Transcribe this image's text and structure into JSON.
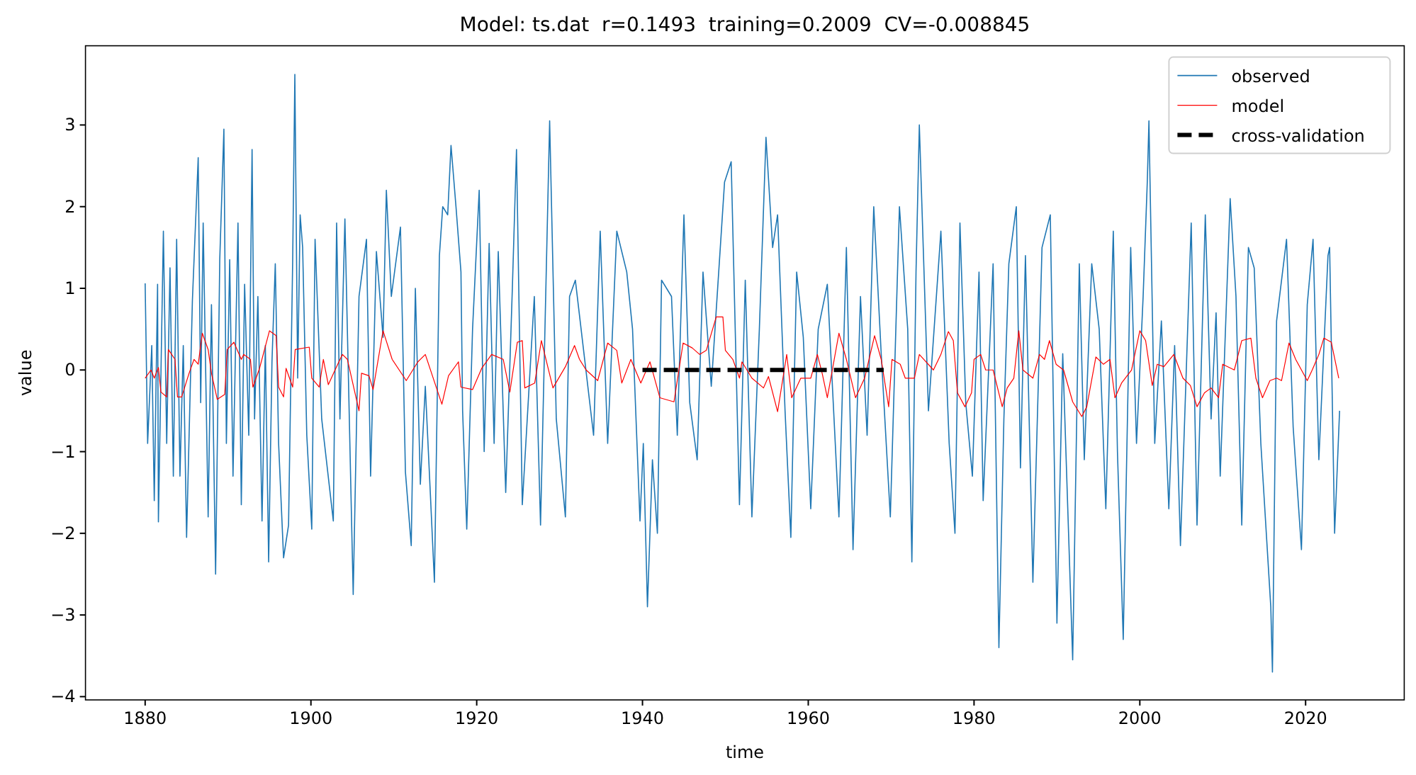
{
  "chart_data": {
    "type": "line",
    "title": "Model: ts.dat  r=0.1493  training=0.2009  CV=-0.008845",
    "xlabel": "time",
    "ylabel": "value",
    "xlim": [
      1872.8,
      2031.9
    ],
    "ylim": [
      -4.04,
      3.97
    ],
    "xticks": [
      1880,
      1900,
      1920,
      1940,
      1960,
      1980,
      2000,
      2020
    ],
    "yticks": [
      {
        "value": -4,
        "label": "−4"
      },
      {
        "value": -3,
        "label": "−3"
      },
      {
        "value": -2,
        "label": "−2"
      },
      {
        "value": -1,
        "label": "−1"
      },
      0,
      1,
      2,
      3
    ],
    "legend": "top right",
    "line_style": "solid",
    "marker": "none",
    "series": [
      {
        "name": "observed",
        "color": "#1f77b4",
        "x": [
          1880.0,
          1880.3,
          1880.8,
          1881.1,
          1881.5,
          1881.6,
          1882.2,
          1882.6,
          1883.0,
          1883.4,
          1883.8,
          1884.2,
          1884.6,
          1885.0,
          1885.7,
          1886.4,
          1886.7,
          1887.0,
          1887.6,
          1888.0,
          1888.5,
          1889.0,
          1889.5,
          1889.8,
          1890.2,
          1890.6,
          1891.2,
          1891.6,
          1892.0,
          1892.5,
          1892.9,
          1893.2,
          1893.6,
          1894.1,
          1894.5,
          1894.9,
          1895.3,
          1895.7,
          1896.1,
          1896.7,
          1897.3,
          1897.8,
          1898.06,
          1898.4,
          1898.7,
          1899.0,
          1899.5,
          1900.1,
          1900.5,
          1901.3,
          1902.7,
          1903.1,
          1903.5,
          1904.1,
          1905.1,
          1905.8,
          1906.7,
          1907.2,
          1907.9,
          1908.7,
          1909.1,
          1909.7,
          1910.8,
          1911.4,
          1912.1,
          1912.6,
          1913.2,
          1913.8,
          1914.4,
          1914.9,
          1915.5,
          1915.9,
          1916.5,
          1916.9,
          1917.5,
          1918.1,
          1918.3,
          1918.8,
          1919.5,
          1920.3,
          1920.9,
          1921.5,
          1922.1,
          1922.6,
          1923.5,
          1924.3,
          1924.8,
          1925.5,
          1926.95,
          1927.7,
          1928.8,
          1929.6,
          1930.7,
          1931.2,
          1931.9,
          1934.1,
          1934.9,
          1935.8,
          1936.9,
          1938.1,
          1938.8,
          1939.7,
          1940.1,
          1940.6,
          1941.2,
          1941.8,
          1942.3,
          1943.5,
          1944.2,
          1945.0,
          1945.7,
          1946.6,
          1947.3,
          1948.3,
          1949.9,
          1950.7,
          1951.7,
          1952.4,
          1953.2,
          1954.1,
          1954.9,
          1955.7,
          1956.3,
          1957.2,
          1957.9,
          1958.6,
          1959.4,
          1960.3,
          1961.2,
          1962.3,
          1963.7,
          1964.6,
          1965.4,
          1966.3,
          1967.1,
          1967.9,
          1968.8,
          1969.9,
          1971.0,
          1972.0,
          1972.5,
          1973.0,
          1973.4,
          1974.5,
          1976.0,
          1977.0,
          1977.7,
          1978.3,
          1979.0,
          1979.8,
          1980.6,
          1981.1,
          1982.3,
          1983.0,
          1983.6,
          1984.2,
          1985.1,
          1985.6,
          1986.2,
          1987.1,
          1988.2,
          1989.2,
          1990.0,
          1990.7,
          1991.9,
          1992.7,
          1993.3,
          1994.2,
          1995.1,
          1995.9,
          1996.8,
          1997.3,
          1998.0,
          1998.9,
          1999.6,
          2000.4,
          2000.9,
          2001.1,
          2001.8,
          2002.6,
          2003.5,
          2004.2,
          2004.9,
          2006.2,
          2006.9,
          2007.9,
          2008.6,
          2009.2,
          2009.7,
          2010.9,
          2011.6,
          2012.3,
          2013.1,
          2013.8,
          2014.6,
          2015.8,
          2016.0,
          2016.5,
          2017.7,
          2018.5,
          2019.5,
          2020.2,
          2020.9,
          2021.6,
          2022.7,
          2022.9,
          2023.5,
          2024.1
        ],
        "values": [
          1.06,
          -0.9,
          0.3,
          -1.6,
          1.05,
          -1.86,
          1.7,
          -0.9,
          1.25,
          -1.3,
          1.6,
          -1.3,
          0.3,
          -2.05,
          0.85,
          2.6,
          -0.4,
          1.8,
          -1.8,
          0.8,
          -2.5,
          1.35,
          2.95,
          -0.9,
          1.35,
          -1.3,
          1.8,
          -1.65,
          1.05,
          -0.8,
          2.7,
          -0.6,
          0.9,
          -1.85,
          0.3,
          -2.35,
          0.1,
          1.3,
          -0.9,
          -2.3,
          -1.9,
          1.35,
          3.62,
          -0.1,
          1.9,
          1.5,
          -0.8,
          -1.95,
          1.6,
          -0.6,
          -1.85,
          1.8,
          -0.6,
          1.85,
          -2.75,
          0.9,
          1.6,
          -1.3,
          1.45,
          0.4,
          2.2,
          0.9,
          1.75,
          -1.25,
          -2.15,
          1.0,
          -1.4,
          -0.2,
          -1.5,
          -2.6,
          1.4,
          2.0,
          1.9,
          2.75,
          2.0,
          1.2,
          -0.5,
          -1.95,
          0.5,
          2.2,
          -1.0,
          1.55,
          -0.9,
          1.45,
          -1.5,
          1.0,
          2.7,
          -1.65,
          0.9,
          -1.9,
          3.05,
          -0.6,
          -1.8,
          0.9,
          1.1,
          -0.8,
          1.7,
          -0.9,
          1.7,
          1.2,
          0.5,
          -1.85,
          -0.9,
          -2.9,
          -1.1,
          -2.0,
          1.1,
          0.9,
          -0.8,
          1.9,
          -0.4,
          -1.1,
          1.2,
          -0.2,
          2.3,
          2.55,
          -1.65,
          1.1,
          -1.8,
          0.5,
          2.85,
          1.5,
          1.9,
          -0.5,
          -2.05,
          1.2,
          0.4,
          -1.7,
          0.5,
          1.05,
          -1.8,
          1.5,
          -2.2,
          0.9,
          -0.8,
          2.0,
          0.2,
          -1.8,
          2.0,
          0.5,
          -2.35,
          1.2,
          3.0,
          -0.5,
          1.7,
          -0.9,
          -2.0,
          1.8,
          -0.4,
          -1.3,
          1.2,
          -1.6,
          1.3,
          -3.4,
          -0.6,
          1.3,
          2.0,
          -1.2,
          1.4,
          -2.6,
          1.5,
          1.9,
          -3.1,
          0.2,
          -3.55,
          1.3,
          -1.1,
          1.3,
          0.5,
          -1.7,
          1.7,
          -1.0,
          -3.3,
          1.5,
          -0.9,
          0.9,
          2.3,
          3.05,
          -0.9,
          0.6,
          -1.7,
          0.3,
          -2.15,
          1.8,
          -1.9,
          1.9,
          -0.6,
          0.7,
          -1.3,
          2.1,
          0.9,
          -1.9,
          1.5,
          1.25,
          -0.9,
          -2.9,
          -3.7,
          0.6,
          1.6,
          -0.7,
          -2.2,
          0.8,
          1.6,
          -1.1,
          1.4,
          1.5,
          -2.0,
          -0.5
        ]
      },
      {
        "name": "model",
        "color": "#ff0000",
        "x": [
          1880.0,
          1880.7,
          1881.1,
          1881.6,
          1881.9,
          1882.6,
          1882.8,
          1883.6,
          1883.9,
          1884.4,
          1885.3,
          1885.9,
          1886.4,
          1886.9,
          1887.6,
          1888.0,
          1888.7,
          1889.6,
          1889.9,
          1890.7,
          1891.6,
          1891.9,
          1892.7,
          1893.0,
          1893.8,
          1895.0,
          1895.8,
          1896.1,
          1896.7,
          1897.0,
          1897.8,
          1898.1,
          1899.8,
          1900.1,
          1901.0,
          1901.5,
          1902.1,
          1903.0,
          1903.8,
          1904.4,
          1905.8,
          1906.1,
          1907.0,
          1907.5,
          1908.7,
          1909.8,
          1911.5,
          1912.9,
          1913.8,
          1915.8,
          1916.6,
          1917.8,
          1918.1,
          1919.5,
          1920.6,
          1921.8,
          1923.2,
          1924.0,
          1924.9,
          1925.5,
          1925.8,
          1927.0,
          1927.8,
          1929.2,
          1930.7,
          1931.8,
          1932.4,
          1933.2,
          1934.6,
          1935.8,
          1936.9,
          1937.5,
          1938.6,
          1939.8,
          1940.9,
          1942.1,
          1943.8,
          1944.9,
          1946.0,
          1946.9,
          1947.7,
          1948.9,
          1949.7,
          1950.0,
          1950.9,
          1951.7,
          1952.0,
          1953.2,
          1954.6,
          1955.2,
          1956.3,
          1957.4,
          1958.0,
          1959.1,
          1960.3,
          1961.1,
          1961.7,
          1962.3,
          1963.7,
          1964.6,
          1965.7,
          1966.8,
          1968.0,
          1968.8,
          1969.7,
          1970.1,
          1971.1,
          1971.7,
          1972.8,
          1973.4,
          1975.1,
          1976.0,
          1976.9,
          1977.5,
          1978.0,
          1978.9,
          1979.7,
          1980.0,
          1980.8,
          1981.4,
          1982.3,
          1983.4,
          1984.0,
          1984.8,
          1985.4,
          1985.9,
          1987.1,
          1987.9,
          1988.5,
          1989.1,
          1989.9,
          1990.8,
          1991.9,
          1993.0,
          1993.6,
          1994.7,
          1995.6,
          1996.4,
          1997.0,
          1997.8,
          1999.0,
          2000.0,
          2000.7,
          2001.5,
          2002.1,
          2002.9,
          2004.1,
          2005.2,
          2006.1,
          2006.9,
          2007.8,
          2008.6,
          2009.5,
          2010.0,
          2011.4,
          2012.3,
          2013.4,
          2014.0,
          2014.8,
          2015.7,
          2016.5,
          2017.1,
          2018.0,
          2018.8,
          2020.2,
          2020.8,
          2021.6,
          2022.2,
          2023.1,
          2024.0
        ],
        "values": [
          -0.1,
          0.0,
          -0.1,
          0.03,
          -0.27,
          -0.33,
          0.25,
          0.13,
          -0.33,
          -0.33,
          -0.04,
          0.13,
          0.07,
          0.45,
          0.25,
          -0.04,
          -0.36,
          -0.3,
          0.25,
          0.34,
          0.13,
          0.19,
          0.13,
          -0.21,
          0.02,
          0.48,
          0.42,
          -0.21,
          -0.33,
          0.02,
          -0.21,
          0.25,
          0.28,
          -0.1,
          -0.21,
          0.13,
          -0.18,
          0.02,
          0.19,
          0.13,
          -0.5,
          -0.04,
          -0.07,
          -0.24,
          0.48,
          0.13,
          -0.13,
          0.1,
          0.19,
          -0.42,
          -0.07,
          0.1,
          -0.21,
          -0.24,
          0.02,
          0.19,
          0.13,
          -0.27,
          0.34,
          0.36,
          -0.22,
          -0.16,
          0.36,
          -0.22,
          0.04,
          0.3,
          0.13,
          0.0,
          -0.13,
          0.33,
          0.24,
          -0.16,
          0.13,
          -0.16,
          0.1,
          -0.34,
          -0.39,
          0.33,
          0.27,
          0.19,
          0.24,
          0.65,
          0.65,
          0.24,
          0.13,
          -0.1,
          0.1,
          -0.1,
          -0.22,
          -0.08,
          -0.51,
          0.19,
          -0.34,
          -0.1,
          -0.1,
          0.19,
          -0.05,
          -0.34,
          0.45,
          0.13,
          -0.34,
          -0.1,
          0.42,
          0.13,
          -0.45,
          0.13,
          0.07,
          -0.1,
          -0.1,
          0.19,
          0.0,
          0.19,
          0.47,
          0.36,
          -0.28,
          -0.45,
          -0.28,
          0.13,
          0.19,
          0.0,
          0.0,
          -0.45,
          -0.22,
          -0.1,
          0.48,
          0.0,
          -0.1,
          0.19,
          0.13,
          0.36,
          0.07,
          0.0,
          -0.39,
          -0.57,
          -0.45,
          0.16,
          0.07,
          0.13,
          -0.34,
          -0.16,
          0.0,
          0.48,
          0.36,
          -0.19,
          0.07,
          0.04,
          0.19,
          -0.1,
          -0.19,
          -0.45,
          -0.28,
          -0.22,
          -0.34,
          0.07,
          0.0,
          0.36,
          0.39,
          -0.1,
          -0.34,
          -0.13,
          -0.1,
          -0.13,
          0.33,
          0.13,
          -0.13,
          0.0,
          0.19,
          0.39,
          0.34,
          -0.1
        ]
      },
      {
        "name": "cross-validation",
        "color": "#000000",
        "line_style": "dashed",
        "x": [
          1940.0,
          1969.1
        ],
        "values": [
          0,
          0
        ]
      }
    ]
  }
}
